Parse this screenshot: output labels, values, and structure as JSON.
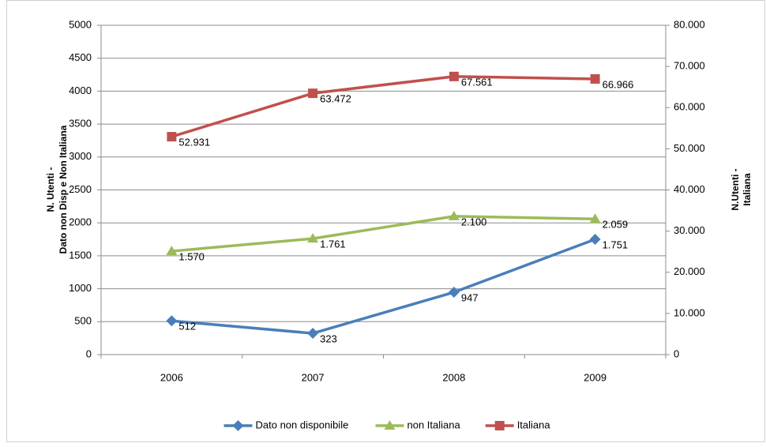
{
  "chart_data": {
    "type": "line",
    "categories": [
      "2006",
      "2007",
      "2008",
      "2009"
    ],
    "ylabel": [
      "N. Utenti -",
      "Dato non Disp e Non Italiana"
    ],
    "y2label": [
      "N.Utenti -",
      "Italiana"
    ],
    "ylim": [
      0,
      5000
    ],
    "yticks": [
      0,
      500,
      1000,
      1500,
      2000,
      2500,
      3000,
      3500,
      4000,
      4500,
      5000
    ],
    "y2lim": [
      0,
      80000
    ],
    "y2ticks": [
      0,
      {
        "value": 10000,
        "label": "10.000"
      },
      {
        "value": 20000,
        "label": "20.000"
      },
      {
        "value": 30000,
        "label": "30.000"
      },
      {
        "value": 40000,
        "label": "40.000"
      },
      {
        "value": 50000,
        "label": "50.000"
      },
      {
        "value": 60000,
        "label": "60.000"
      },
      {
        "value": 70000,
        "label": "70.000"
      },
      {
        "value": 80000,
        "label": "80.000"
      }
    ],
    "grid": true,
    "legend": "bottom",
    "series": [
      {
        "name": "Dato non disponibile",
        "color": "#4a7ebb",
        "marker": "diamond",
        "values": [
          512,
          323,
          947,
          1751
        ],
        "value_labels": [
          "512",
          "323",
          "947",
          "1.751"
        ]
      },
      {
        "name": "non Italiana",
        "color": "#9bbb59",
        "marker": "triangle",
        "values": [
          1570,
          1761,
          2100,
          2059
        ],
        "value_labels": [
          "1.570",
          "1.761",
          "2.100",
          "2.059"
        ]
      },
      {
        "name": "Italiana",
        "color": "#c0504d",
        "marker": "square",
        "axis": "y2",
        "values": [
          52931,
          63472,
          67561,
          66966
        ],
        "value_labels": [
          "52.931",
          "63.472",
          "67.561",
          "66.966"
        ]
      }
    ]
  }
}
